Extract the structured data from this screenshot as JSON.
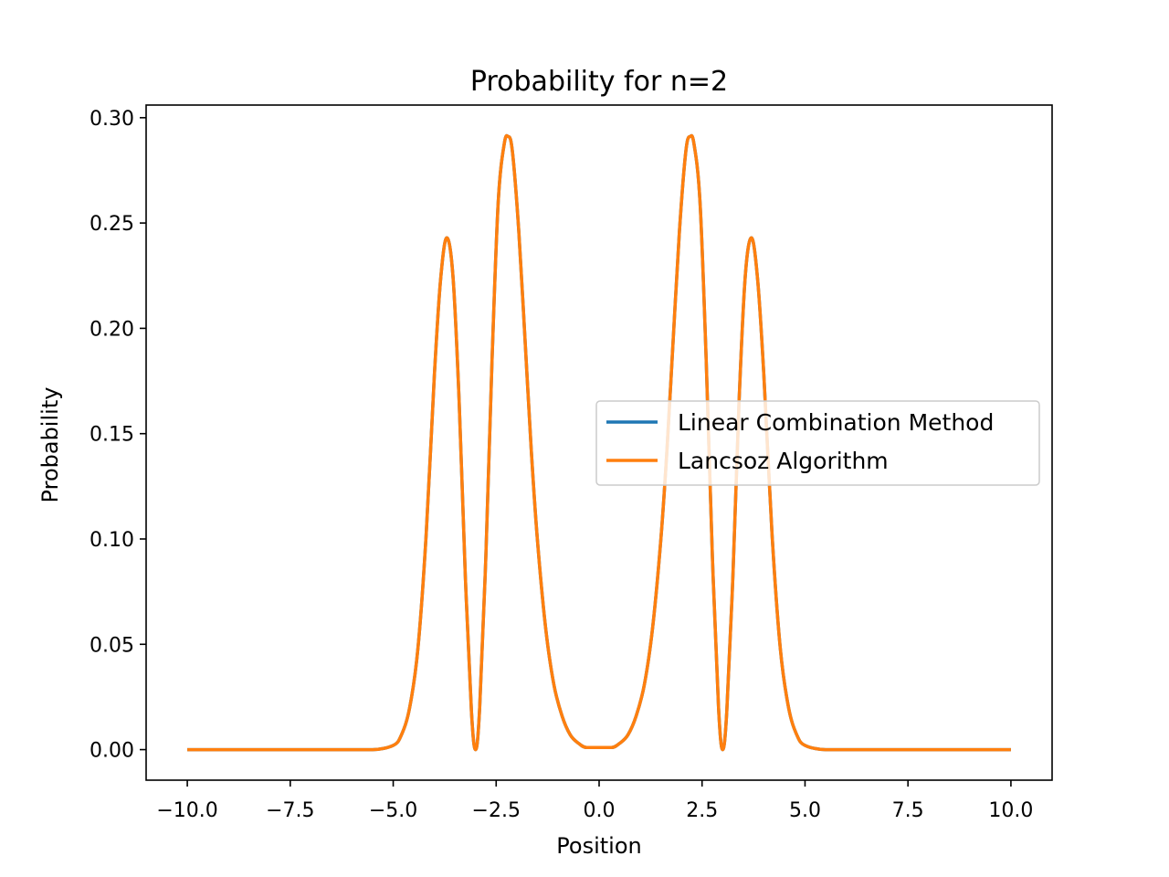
{
  "chart_data": {
    "type": "line",
    "title": "Probability for n=2",
    "xlabel": "Position",
    "ylabel": "Probability",
    "xlim": [
      -11.0,
      11.0
    ],
    "ylim": [
      -0.0145,
      0.306
    ],
    "grid": false,
    "legend_position": "center-right",
    "x_ticks": [
      -10.0,
      -7.5,
      -5.0,
      -2.5,
      0.0,
      2.5,
      5.0,
      7.5,
      10.0
    ],
    "x_tick_labels": [
      "−10.0",
      "−7.5",
      "−5.0",
      "−2.5",
      "0.0",
      "2.5",
      "5.0",
      "7.5",
      "10.0"
    ],
    "y_ticks": [
      0.0,
      0.05,
      0.1,
      0.15,
      0.2,
      0.25,
      0.3
    ],
    "y_tick_labels": [
      "0.00",
      "0.05",
      "0.10",
      "0.15",
      "0.20",
      "0.25",
      "0.30"
    ],
    "series": [
      {
        "name": "Linear Combination Method",
        "color": "#1f77b4",
        "x": [
          -10.0,
          -6.0,
          -5.5,
          -5.0,
          -4.8,
          -4.6,
          -4.4,
          -4.2,
          -4.0,
          -3.85,
          -3.7,
          -3.55,
          -3.4,
          -3.25,
          -3.1,
          -3.0,
          -2.9,
          -2.75,
          -2.6,
          -2.45,
          -2.3,
          -2.2,
          -2.1,
          -1.95,
          -1.8,
          -1.65,
          -1.5,
          -1.3,
          -1.1,
          -0.9,
          -0.7,
          -0.5,
          -0.3,
          0.0,
          0.3,
          0.5,
          0.7,
          0.9,
          1.1,
          1.3,
          1.5,
          1.65,
          1.8,
          1.95,
          2.1,
          2.2,
          2.3,
          2.45,
          2.6,
          2.75,
          2.9,
          3.0,
          3.1,
          3.25,
          3.4,
          3.55,
          3.7,
          3.85,
          4.0,
          4.2,
          4.4,
          4.6,
          4.8,
          5.0,
          5.5,
          6.0,
          10.0
        ],
        "y": [
          0.0,
          0.0,
          0.0,
          0.002,
          0.007,
          0.02,
          0.048,
          0.102,
          0.178,
          0.223,
          0.243,
          0.225,
          0.166,
          0.083,
          0.018,
          0.0,
          0.02,
          0.092,
          0.185,
          0.26,
          0.288,
          0.291,
          0.283,
          0.246,
          0.195,
          0.143,
          0.1,
          0.058,
          0.031,
          0.016,
          0.007,
          0.003,
          0.001,
          0.001,
          0.001,
          0.003,
          0.007,
          0.016,
          0.031,
          0.058,
          0.1,
          0.143,
          0.195,
          0.246,
          0.283,
          0.291,
          0.288,
          0.26,
          0.185,
          0.092,
          0.02,
          0.0,
          0.018,
          0.083,
          0.166,
          0.225,
          0.243,
          0.223,
          0.178,
          0.102,
          0.048,
          0.02,
          0.007,
          0.002,
          0.0,
          0.0,
          0.0
        ]
      },
      {
        "name": "Lancsoz Algorithm",
        "color": "#ff7f0e",
        "x": [
          -10.0,
          -6.0,
          -5.5,
          -5.0,
          -4.8,
          -4.6,
          -4.4,
          -4.2,
          -4.0,
          -3.85,
          -3.7,
          -3.55,
          -3.4,
          -3.25,
          -3.1,
          -3.0,
          -2.9,
          -2.75,
          -2.6,
          -2.45,
          -2.3,
          -2.2,
          -2.1,
          -1.95,
          -1.8,
          -1.65,
          -1.5,
          -1.3,
          -1.1,
          -0.9,
          -0.7,
          -0.5,
          -0.3,
          0.0,
          0.3,
          0.5,
          0.7,
          0.9,
          1.1,
          1.3,
          1.5,
          1.65,
          1.8,
          1.95,
          2.1,
          2.2,
          2.3,
          2.45,
          2.6,
          2.75,
          2.9,
          3.0,
          3.1,
          3.25,
          3.4,
          3.55,
          3.7,
          3.85,
          4.0,
          4.2,
          4.4,
          4.6,
          4.8,
          5.0,
          5.5,
          6.0,
          10.0
        ],
        "y": [
          0.0,
          0.0,
          0.0,
          0.002,
          0.007,
          0.02,
          0.048,
          0.102,
          0.178,
          0.223,
          0.243,
          0.225,
          0.166,
          0.083,
          0.018,
          0.0,
          0.02,
          0.092,
          0.185,
          0.26,
          0.288,
          0.291,
          0.283,
          0.246,
          0.195,
          0.143,
          0.1,
          0.058,
          0.031,
          0.016,
          0.007,
          0.003,
          0.001,
          0.001,
          0.001,
          0.003,
          0.007,
          0.016,
          0.031,
          0.058,
          0.1,
          0.143,
          0.195,
          0.246,
          0.283,
          0.291,
          0.288,
          0.26,
          0.185,
          0.092,
          0.02,
          0.0,
          0.018,
          0.083,
          0.166,
          0.225,
          0.243,
          0.223,
          0.178,
          0.102,
          0.048,
          0.02,
          0.007,
          0.002,
          0.0,
          0.0,
          0.0
        ]
      }
    ]
  }
}
